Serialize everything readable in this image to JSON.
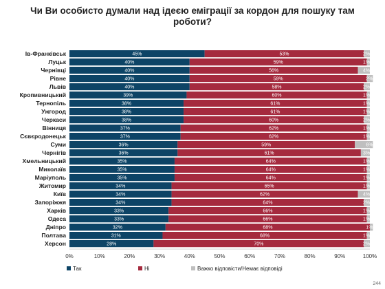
{
  "title": "Чи Ви особисто думали над ідеєю еміграції за кордон для пошуку там роботи?",
  "page_number": "244",
  "colors": {
    "yes": "#0d4466",
    "no": "#a52a3e",
    "dk": "#bfbfbf"
  },
  "chart_data": {
    "type": "bar",
    "orientation": "horizontal",
    "stacked": true,
    "title": "Чи Ви особисто думали над ідеєю еміграції за кордон для пошуку там роботи?",
    "xlim": [
      0,
      100
    ],
    "x_ticks": [
      "0%",
      "10%",
      "20%",
      "30%",
      "40%",
      "50%",
      "60%",
      "70%",
      "80%",
      "90%",
      "100%"
    ],
    "legend_position": "bottom",
    "grid": false,
    "categories": [
      "Ів-Франківськ",
      "Луцьк",
      "Чернівці",
      "Рівне",
      "Львів",
      "Кропивницький",
      "Тернопіль",
      "Ужгород",
      "Черкаси",
      "Вінниця",
      "Сєвєродонецьк",
      "Суми",
      "Чернігів",
      "Хмельницький",
      "Миколаїв",
      "Маріуполь",
      "Житомир",
      "Київ",
      "Запоріжжя",
      "Харків",
      "Одеса",
      "Дніпро",
      "Полтава",
      "Херсон"
    ],
    "series": [
      {
        "name": "Так",
        "values": [
          45,
          40,
          40,
          40,
          40,
          39,
          38,
          38,
          38,
          37,
          37,
          36,
          36,
          35,
          35,
          35,
          34,
          34,
          34,
          33,
          33,
          32,
          31,
          28
        ]
      },
      {
        "name": "Ні",
        "values": [
          53,
          59,
          56,
          59,
          58,
          60,
          61,
          61,
          60,
          62,
          62,
          59,
          61,
          64,
          64,
          64,
          65,
          62,
          64,
          66,
          66,
          68,
          68,
          70
        ]
      },
      {
        "name": "Важко відповісти/Немає відповіді",
        "values": [
          2,
          1,
          4,
          2,
          2,
          1,
          1,
          1,
          2,
          1,
          1,
          6,
          3,
          1,
          1,
          1,
          1,
          4,
          2,
          1,
          1,
          1,
          1,
          2
        ]
      }
    ]
  }
}
